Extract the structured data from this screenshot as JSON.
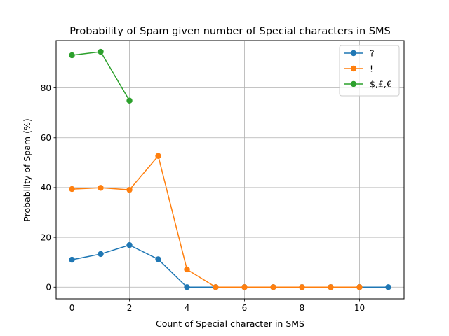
{
  "chart_data": {
    "type": "line",
    "title": "Probability of Spam given number of Special characters in SMS",
    "xlabel": "Count of Special character in SMS",
    "ylabel": "Probability of Spam (%)",
    "xlim": [
      -0.55,
      11.55
    ],
    "ylim": [
      -4.7,
      99.0
    ],
    "xticks": [
      0,
      2,
      4,
      6,
      8,
      10
    ],
    "yticks": [
      0,
      20,
      40,
      60,
      80
    ],
    "grid": true,
    "legend_position": "top-right",
    "series": [
      {
        "name": "?",
        "color": "#1f77b4",
        "x": [
          0,
          1,
          2,
          3,
          4,
          5,
          6,
          7,
          8,
          9,
          10,
          11
        ],
        "y": [
          11.0,
          13.3,
          16.9,
          11.2,
          0,
          0,
          0,
          0,
          0,
          0,
          0,
          0
        ]
      },
      {
        "name": "!",
        "color": "#ff7f0e",
        "x": [
          0,
          1,
          2,
          3,
          4,
          5,
          6,
          7,
          8,
          9,
          10
        ],
        "y": [
          39.4,
          39.9,
          39.1,
          52.7,
          7.1,
          0,
          0,
          0,
          0,
          0,
          0
        ]
      },
      {
        "name": "$,£,€",
        "color": "#2ca02c",
        "x": [
          0,
          1,
          2
        ],
        "y": [
          93.1,
          94.5,
          74.9
        ]
      }
    ]
  }
}
